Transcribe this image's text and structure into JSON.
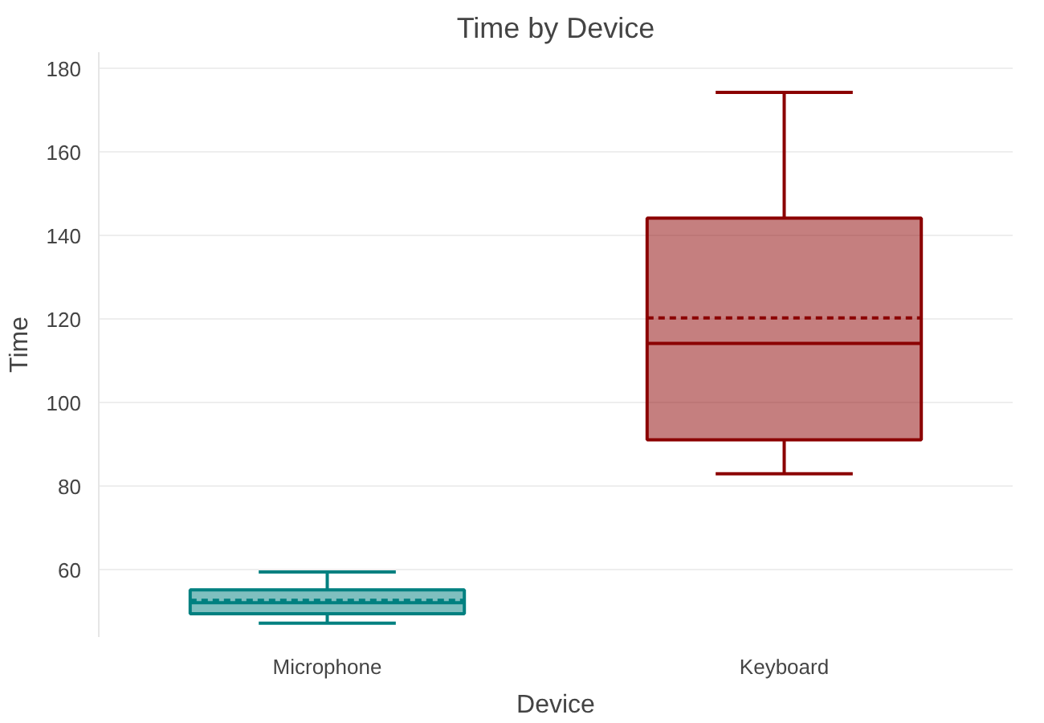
{
  "chart_data": {
    "type": "box",
    "title": "Time by Device",
    "xlabel": "Device",
    "ylabel": "Time",
    "categories": [
      "Microphone",
      "Keyboard"
    ],
    "colors": [
      "#008080",
      "#8b0000"
    ],
    "boxes": [
      {
        "low": 47.3,
        "q1": 49.6,
        "median": 52.2,
        "q3": 55.3,
        "high": 59.6,
        "mean": 52.8
      },
      {
        "low": 83.1,
        "q1": 91.2,
        "median": 114.3,
        "q3": 144.3,
        "high": 174.4,
        "mean": 120.4
      }
    ],
    "ylim": [
      44,
      184
    ],
    "yticks": [
      60,
      80,
      100,
      120,
      140,
      160,
      180
    ],
    "grid": "y"
  }
}
